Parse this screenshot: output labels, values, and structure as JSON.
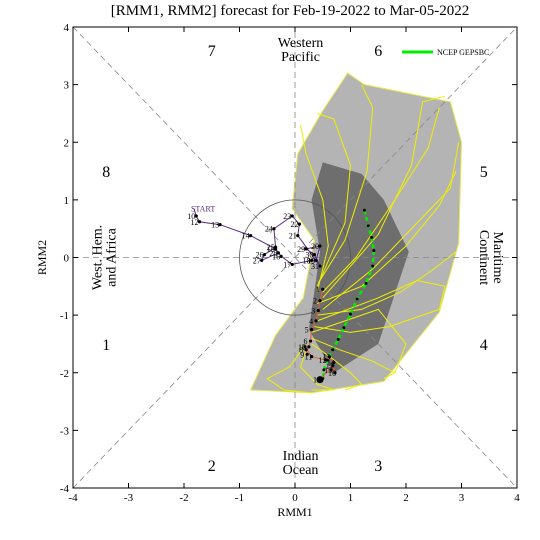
{
  "title": "[RMM1, RMM2] forecast for Feb-19-2022 to Mar-05-2022",
  "chart_data": {
    "type": "scatter",
    "xlabel": "RMM1",
    "ylabel": "RMM2",
    "xlim": [
      -4,
      4
    ],
    "ylim": [
      -4,
      4
    ],
    "xticks": [
      "-4",
      "-3",
      "-2",
      "-1",
      "0",
      "1",
      "2",
      "3",
      "4"
    ],
    "yticks": [
      "4",
      "3",
      "2",
      "1",
      "0",
      "-1",
      "-2",
      "-3",
      "-4"
    ],
    "legend": {
      "label": "NCEP GEPSBC",
      "color": "#00ee00",
      "position": "top-right"
    },
    "phases": [
      {
        "label": "1",
        "x": -3.4,
        "y": -1.5
      },
      {
        "label": "2",
        "x": -1.5,
        "y": -3.6
      },
      {
        "label": "3",
        "x": 1.5,
        "y": -3.6
      },
      {
        "label": "4",
        "x": 3.4,
        "y": -1.5
      },
      {
        "label": "5",
        "x": 3.4,
        "y": 1.5
      },
      {
        "label": "6",
        "x": 1.5,
        "y": 3.6
      },
      {
        "label": "7",
        "x": -1.5,
        "y": 3.6
      },
      {
        "label": "8",
        "x": -3.4,
        "y": 1.5
      }
    ],
    "regions": [
      {
        "lines": [
          "Western",
          "Pacific"
        ],
        "x": 0.1,
        "y": 3.62,
        "rotate": 0
      },
      {
        "lines": [
          "Indian",
          "Ocean"
        ],
        "x": 0.1,
        "y": -3.55,
        "rotate": 0
      },
      {
        "lines": [
          "West. Hem.",
          "and Africa"
        ],
        "x": -3.45,
        "y": 0,
        "rotate": -90
      },
      {
        "lines": [
          "Maritime",
          "Continent"
        ],
        "x": 3.55,
        "y": 0,
        "rotate": 90
      }
    ],
    "observed": {
      "color": "#5a2a84",
      "start_label": "START",
      "start_x": -1.82,
      "start_y": 0.85,
      "points": [
        {
          "label": "10",
          "x": -1.78,
          "y": 0.72
        },
        {
          "label": "12",
          "x": -1.72,
          "y": 0.62
        },
        {
          "label": "13",
          "x": -1.35,
          "y": 0.57
        },
        {
          "label": "14",
          "x": -0.8,
          "y": 0.38
        },
        {
          "label": "15",
          "x": -0.35,
          "y": 0.15
        },
        {
          "label": "16",
          "x": -0.25,
          "y": 0.02
        },
        {
          "label": "17",
          "x": -0.05,
          "y": -0.12
        },
        {
          "label": "18",
          "x": 0.3,
          "y": -0.05
        },
        {
          "label": "19",
          "x": 0.38,
          "y": -0.05
        },
        {
          "label": "20",
          "x": 0.45,
          "y": 0.2
        },
        {
          "label": "29",
          "x": 0.2,
          "y": 0.15
        },
        {
          "label": "30",
          "x": 0.35,
          "y": 0.05
        },
        {
          "label": "31",
          "x": 0.45,
          "y": -0.15
        },
        {
          "label": "21",
          "x": 0.05,
          "y": 0.38
        },
        {
          "label": "22",
          "x": 0.08,
          "y": 0.58
        },
        {
          "label": "23",
          "x": -0.05,
          "y": 0.72
        },
        {
          "label": "24",
          "x": -0.38,
          "y": 0.5
        },
        {
          "label": "25",
          "x": -0.35,
          "y": 0.18
        },
        {
          "label": "26",
          "x": -0.55,
          "y": 0.05
        },
        {
          "label": "27",
          "x": -0.6,
          "y": -0.05
        },
        {
          "label": "28",
          "x": -0.3,
          "y": 0.08
        }
      ]
    },
    "ensemble_mean": {
      "color": "#00ee00",
      "points": [
        {
          "x": 1.25,
          "y": 0.82
        },
        {
          "x": 1.32,
          "y": 0.55
        },
        {
          "x": 1.38,
          "y": 0.35
        },
        {
          "x": 1.42,
          "y": 0.12
        },
        {
          "x": 1.4,
          "y": -0.15
        },
        {
          "x": 1.28,
          "y": -0.45
        },
        {
          "x": 1.12,
          "y": -0.72
        },
        {
          "x": 1.0,
          "y": -0.98
        },
        {
          "x": 0.88,
          "y": -1.22
        },
        {
          "x": 0.78,
          "y": -1.42
        },
        {
          "x": 0.68,
          "y": -1.6
        },
        {
          "x": 0.58,
          "y": -1.78
        },
        {
          "x": 0.52,
          "y": -1.95
        },
        {
          "x": 0.5,
          "y": -2.1
        }
      ]
    },
    "forecast_days": [
      {
        "label": "1",
        "x": 0.5,
        "y": -0.55
      },
      {
        "label": "2",
        "x": 0.45,
        "y": -0.75
      },
      {
        "label": "3",
        "x": 0.42,
        "y": -0.92
      },
      {
        "label": "4",
        "x": 0.38,
        "y": -1.1
      },
      {
        "label": "5",
        "x": 0.3,
        "y": -1.25
      },
      {
        "label": "6",
        "x": 0.28,
        "y": -1.45
      },
      {
        "label": "7",
        "x": 0.25,
        "y": -1.55
      },
      {
        "label": "8",
        "x": 0.2,
        "y": -1.6
      },
      {
        "label": "9",
        "x": 0.22,
        "y": -1.68
      },
      {
        "label": "10",
        "x": 0.18,
        "y": -1.55
      },
      {
        "label": "11",
        "x": 0.3,
        "y": -1.72
      },
      {
        "label": "12",
        "x": 0.55,
        "y": -1.78
      },
      {
        "label": "13",
        "x": 0.62,
        "y": -1.72
      },
      {
        "label": "14",
        "x": 0.7,
        "y": -1.82
      },
      {
        "label": "15",
        "x": 0.65,
        "y": -1.95
      },
      {
        "label": "16",
        "x": 0.72,
        "y": -2.0
      },
      {
        "label": "17",
        "x": 0.68,
        "y": -1.88
      },
      {
        "label": "18",
        "x": 0.45,
        "y": -2.12
      }
    ],
    "outer_spread": [
      [
        0.5,
        2.55
      ],
      [
        0.95,
        3.2
      ],
      [
        1.25,
        3.0
      ],
      [
        2.8,
        2.7
      ],
      [
        3.0,
        2.0
      ],
      [
        2.95,
        0.25
      ],
      [
        2.6,
        -0.95
      ],
      [
        1.6,
        -2.15
      ],
      [
        0.3,
        -2.35
      ],
      [
        -0.8,
        -2.3
      ],
      [
        -0.35,
        -1.35
      ],
      [
        0.15,
        -0.7
      ],
      [
        0.35,
        0.3
      ],
      [
        -0.05,
        0.85
      ],
      [
        0.05,
        1.8
      ]
    ],
    "inner_spread": [
      [
        0.5,
        1.65
      ],
      [
        1.2,
        1.45
      ],
      [
        1.6,
        1.0
      ],
      [
        2.05,
        0.1
      ],
      [
        1.5,
        -1.5
      ],
      [
        0.7,
        -2.0
      ],
      [
        0.25,
        -1.25
      ],
      [
        0.45,
        0.1
      ],
      [
        0.3,
        1.0
      ]
    ],
    "members": [
      [
        [
          0.45,
          -0.4
        ],
        [
          0.9,
          0.3
        ],
        [
          1.3,
          1.5
        ],
        [
          1.4,
          2.6
        ],
        [
          1.2,
          3.0
        ]
      ],
      [
        [
          0.5,
          -0.6
        ],
        [
          1.1,
          0.0
        ],
        [
          1.8,
          1.0
        ],
        [
          2.4,
          1.9
        ],
        [
          2.6,
          2.6
        ]
      ],
      [
        [
          0.4,
          -0.8
        ],
        [
          1.2,
          -0.5
        ],
        [
          2.0,
          0.2
        ],
        [
          2.6,
          0.9
        ],
        [
          2.9,
          1.5
        ]
      ],
      [
        [
          0.4,
          -1.0
        ],
        [
          1.2,
          -0.9
        ],
        [
          1.9,
          -0.6
        ],
        [
          2.5,
          -0.2
        ],
        [
          2.9,
          0.1
        ]
      ],
      [
        [
          0.35,
          -1.2
        ],
        [
          1.0,
          -1.3
        ],
        [
          1.7,
          -1.2
        ],
        [
          2.3,
          -1.0
        ],
        [
          2.6,
          -0.9
        ]
      ],
      [
        [
          0.3,
          -1.4
        ],
        [
          0.8,
          -1.6
        ],
        [
          1.4,
          -1.8
        ],
        [
          1.8,
          -2.0
        ],
        [
          1.6,
          -2.1
        ]
      ],
      [
        [
          0.3,
          -1.5
        ],
        [
          0.6,
          -1.7
        ],
        [
          1.0,
          -2.0
        ],
        [
          1.2,
          -2.2
        ],
        [
          0.9,
          -2.3
        ]
      ],
      [
        [
          0.2,
          -1.6
        ],
        [
          0.1,
          -1.9
        ],
        [
          0.4,
          -2.2
        ],
        [
          0.7,
          -2.3
        ],
        [
          0.3,
          -2.3
        ]
      ],
      [
        [
          0.4,
          -0.5
        ],
        [
          0.9,
          0.6
        ],
        [
          1.0,
          1.6
        ],
        [
          0.7,
          2.4
        ],
        [
          0.4,
          2.5
        ]
      ],
      [
        [
          0.5,
          -0.7
        ],
        [
          1.5,
          0.4
        ],
        [
          2.1,
          1.6
        ],
        [
          2.3,
          2.7
        ],
        [
          2.7,
          2.8
        ]
      ],
      [
        [
          0.5,
          -0.9
        ],
        [
          1.4,
          -0.2
        ],
        [
          2.2,
          0.6
        ],
        [
          2.8,
          1.2
        ],
        [
          2.95,
          2.0
        ]
      ],
      [
        [
          0.4,
          -1.1
        ],
        [
          1.5,
          -0.7
        ],
        [
          2.2,
          -0.4
        ],
        [
          2.7,
          -0.5
        ],
        [
          2.6,
          -0.9
        ]
      ],
      [
        [
          0.3,
          -1.3
        ],
        [
          0.9,
          -1.1
        ],
        [
          1.5,
          -0.9
        ],
        [
          2.0,
          -1.5
        ],
        [
          1.8,
          -2.0
        ]
      ],
      [
        [
          0.2,
          -1.5
        ],
        [
          -0.1,
          -1.9
        ],
        [
          -0.5,
          -2.1
        ],
        [
          -0.2,
          -2.3
        ],
        [
          0.3,
          -2.35
        ]
      ],
      [
        [
          0.4,
          -0.6
        ],
        [
          0.6,
          0.2
        ],
        [
          0.5,
          1.0
        ],
        [
          0.2,
          1.8
        ],
        [
          0.1,
          2.3
        ]
      ]
    ],
    "amplitude_circle_radius": 1
  }
}
